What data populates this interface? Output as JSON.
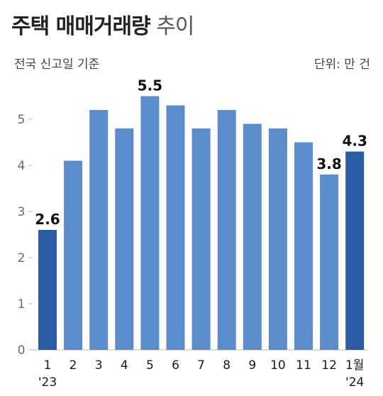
{
  "header": {
    "title_bold": "주택 매매거래량",
    "title_light": "추이",
    "subtitle": "전국 신고일 기준",
    "unit": "단위: 만 건"
  },
  "colors": {
    "bar": "#5b8ccc",
    "bar_highlight": "#2c5ca6",
    "axis": "#bbbbbb"
  },
  "chart_data": {
    "type": "bar",
    "title": "주택 매매거래량 추이",
    "subtitle": "전국 신고일 기준",
    "unit": "단위: 만 건",
    "categories": [
      "1",
      "2",
      "3",
      "4",
      "5",
      "6",
      "7",
      "8",
      "9",
      "10",
      "11",
      "12",
      "1월"
    ],
    "year_labels": [
      "'23",
      "'24"
    ],
    "values": [
      2.6,
      4.1,
      5.2,
      4.8,
      5.5,
      5.3,
      4.8,
      5.2,
      4.9,
      4.8,
      4.5,
      3.8,
      4.3
    ],
    "highlight_indices": [
      0,
      12
    ],
    "data_labels": [
      {
        "index": 0,
        "text": "2.6"
      },
      {
        "index": 4,
        "text": "5.5"
      },
      {
        "index": 11,
        "text": "3.8"
      },
      {
        "index": 12,
        "text": "4.3"
      }
    ],
    "yticks": [
      "0",
      "1",
      "2",
      "3",
      "4",
      "5"
    ],
    "ylim": [
      0,
      6
    ],
    "grid": false,
    "legend": "none"
  }
}
